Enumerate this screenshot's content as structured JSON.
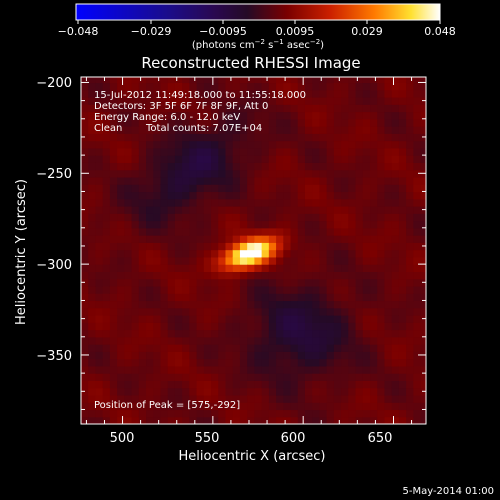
{
  "colorbar": {
    "tick_labels": [
      "−0.048",
      "−0.029",
      "−0.0095",
      "0.0095",
      "0.029",
      "0.048"
    ],
    "label_prefix": "(photons cm",
    "label_exp1": "−2",
    "label_mid": " s",
    "label_exp2": "−1",
    "label_mid2": " asec",
    "label_exp3": "−2",
    "label_suffix": ")"
  },
  "annotations": {
    "time_range": "15-Jul-2012 11:49:18.000 to 11:55:18.000",
    "detectors": "Detectors: 3F 5F 6F 7F 8F 9F, Att 0",
    "energy": "Energy Range: 6.0 - 12.0 keV",
    "clean": "Clean",
    "total_counts": "Total counts: 7.07E+04",
    "peak": "Position of Peak = [575,-292]"
  },
  "footer": {
    "date": "5-May-2014 01:00"
  },
  "chart_data": {
    "type": "heatmap",
    "title": "Reconstructed RHESSI Image",
    "xlabel": "Heliocentric X (arcsec)",
    "ylabel": "Heliocentric Y (arcsec)",
    "xlim": [
      477,
      668
    ],
    "ylim": [
      -388,
      -197
    ],
    "x_ticks": [
      500,
      550,
      600,
      650
    ],
    "y_ticks": [
      -200,
      -250,
      -300,
      -350
    ],
    "x_tick_labels": [
      "500",
      "550",
      "600",
      "650"
    ],
    "y_tick_labels": [
      "−200",
      "−250",
      "−300",
      "−350"
    ],
    "colorbar_range": [
      -0.048,
      0.048
    ],
    "peak_position": [
      575,
      -292
    ],
    "sources": [
      {
        "kind": "positive",
        "x": 570,
        "y": -294,
        "sx": 11,
        "sy": 5,
        "angle_deg": 20,
        "amplitude": 0.048
      },
      {
        "kind": "negative",
        "x": 538,
        "y": -248,
        "sx": 26,
        "sy": 13,
        "angle_deg": 38,
        "amplitude": -0.012
      },
      {
        "kind": "negative",
        "x": 598,
        "y": -338,
        "sx": 20,
        "sy": 18,
        "angle_deg": 0,
        "amplitude": -0.012
      }
    ],
    "colormap": [
      "#0000ff",
      "#1a0c8c",
      "#2a0850",
      "#250a26",
      "#7a0000",
      "#cc2000",
      "#ff7a00",
      "#ffe030",
      "#ffffff"
    ]
  }
}
